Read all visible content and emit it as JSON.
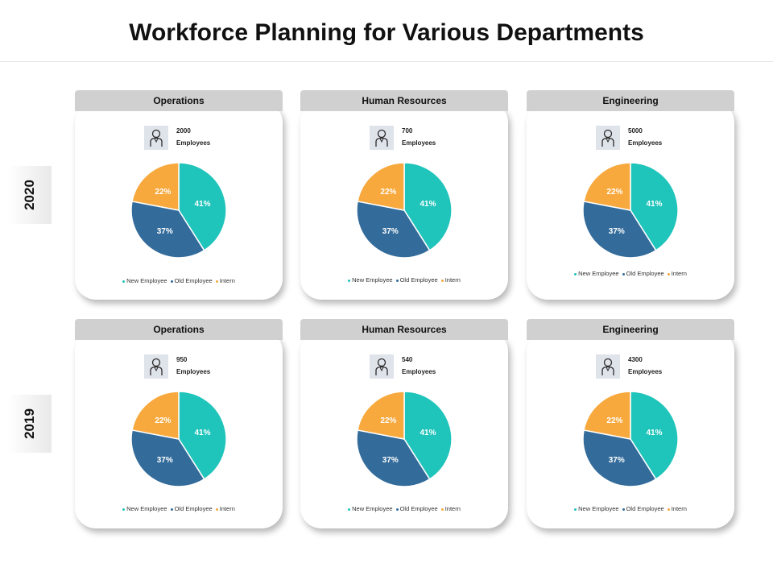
{
  "title": "Workforce Planning for Various Departments",
  "colors": {
    "new_employee": "#1fc4bb",
    "old_employee": "#336c9b",
    "intern": "#f7a93e"
  },
  "rows": [
    {
      "year": "2020",
      "cards": [
        {
          "department": "Operations",
          "count": "2000",
          "unit": "Employees"
        },
        {
          "department": "Human Resources",
          "count": "700",
          "unit": "Employees"
        },
        {
          "department": "Engineering",
          "count": "5000",
          "unit": "Employees"
        }
      ]
    },
    {
      "year": "2019",
      "cards": [
        {
          "department": "Operations",
          "count": "950",
          "unit": "Employees"
        },
        {
          "department": "Human Resources",
          "count": "540",
          "unit": "Employees"
        },
        {
          "department": "Engineering",
          "count": "4300",
          "unit": "Employees"
        }
      ]
    }
  ],
  "chart_data": [
    {
      "type": "pie",
      "title": "Operations 2020",
      "labels": [
        "New Employee",
        "Old Employee",
        "Intern"
      ],
      "values": [
        41,
        37,
        22
      ],
      "data_labels": [
        "41%",
        "37%",
        "22%"
      ]
    },
    {
      "type": "pie",
      "title": "Human Resources 2020",
      "labels": [
        "New Employee",
        "Old Employee",
        "Intern"
      ],
      "values": [
        41,
        37,
        22
      ],
      "data_labels": [
        "41%",
        "37%",
        "22%"
      ]
    },
    {
      "type": "pie",
      "title": "Engineering 2020",
      "labels": [
        "New Employee",
        "Old Employee",
        "Intern"
      ],
      "values": [
        41,
        37,
        22
      ],
      "data_labels": [
        "41%",
        "37%",
        "22%"
      ]
    },
    {
      "type": "pie",
      "title": "Operations 2019",
      "labels": [
        "New Employee",
        "Old Employee",
        "Intern"
      ],
      "values": [
        41,
        37,
        22
      ],
      "data_labels": [
        "41%",
        "37%",
        "22%"
      ]
    },
    {
      "type": "pie",
      "title": "Human Resources 2019",
      "labels": [
        "New Employee",
        "Old Employee",
        "Intern"
      ],
      "values": [
        41,
        37,
        22
      ],
      "data_labels": [
        "41%",
        "37%",
        "22%"
      ]
    },
    {
      "type": "pie",
      "title": "Engineering 2019",
      "labels": [
        "New Employee",
        "Old Employee",
        "Intern"
      ],
      "values": [
        41,
        37,
        22
      ],
      "data_labels": [
        "41%",
        "37%",
        "22%"
      ]
    }
  ]
}
